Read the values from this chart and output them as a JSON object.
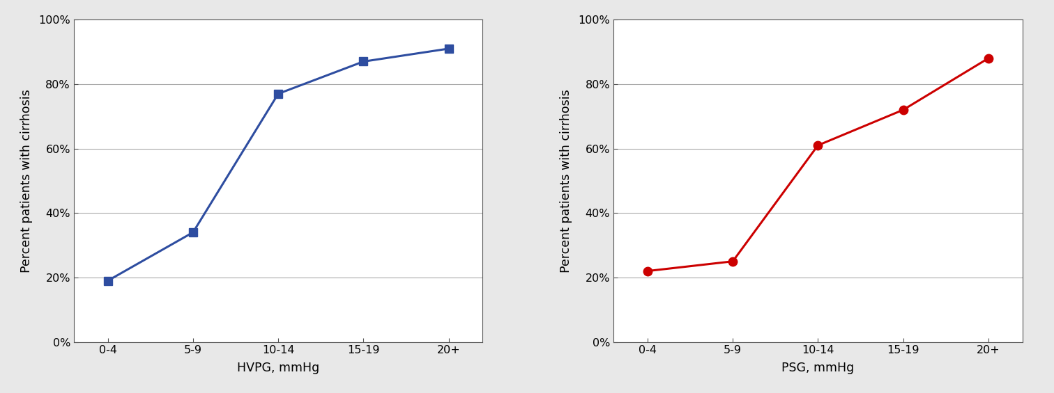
{
  "left": {
    "x_labels": [
      "0-4",
      "5-9",
      "10-14",
      "15-19",
      "20+"
    ],
    "y_values": [
      0.19,
      0.34,
      0.77,
      0.87,
      0.91
    ],
    "color": "#2E4DA0",
    "marker": "s",
    "xlabel": "HVPG, mmHg",
    "ylabel": "Percent patients with cirrhosis"
  },
  "right": {
    "x_labels": [
      "0-4",
      "5-9",
      "10-14",
      "15-19",
      "20+"
    ],
    "y_values": [
      0.22,
      0.25,
      0.61,
      0.72,
      0.88
    ],
    "color": "#CC0000",
    "marker": "o",
    "xlabel": "PSG, mmHg",
    "ylabel": "Percent patients with cirrhosis"
  },
  "ylim": [
    0.0,
    1.0
  ],
  "yticks": [
    0.0,
    0.2,
    0.4,
    0.6,
    0.8,
    1.0
  ],
  "ytick_labels": [
    "0%",
    "20%",
    "40%",
    "60%",
    "80%",
    "100%"
  ],
  "background_color": "#ffffff",
  "fig_border_color": "#cccccc",
  "grid_color": "#aaaaaa",
  "spine_color": "#555555",
  "linewidth": 2.2,
  "markersize": 9,
  "tick_fontsize": 11.5,
  "label_fontsize": 12.5
}
